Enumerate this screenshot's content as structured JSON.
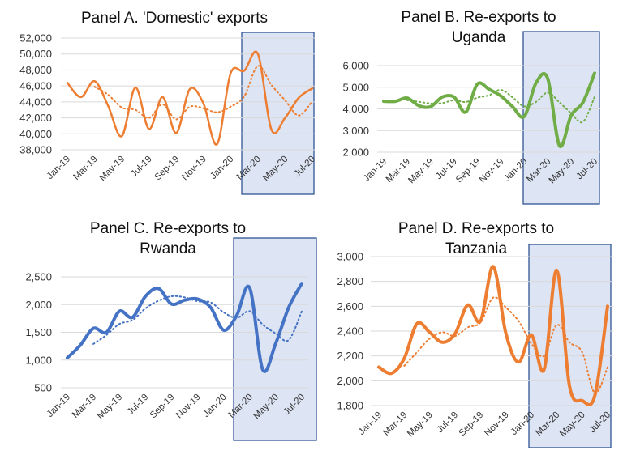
{
  "colors": {
    "orange": "#ED7D31",
    "green": "#70AD47",
    "blue": "#4472C4",
    "highlight_fill": "#DDE4F3",
    "highlight_border": "#2F5496",
    "grid": "#D9D9D9"
  },
  "chart_data": [
    {
      "type": "line",
      "title_lines": [
        "Panel A. 'Domestic' exports"
      ],
      "color": "#ED7D31",
      "categories": [
        "Jan-19",
        "Feb-19",
        "Mar-19",
        "Apr-19",
        "May-19",
        "Jun-19",
        "Jul-19",
        "Aug-19",
        "Sep-19",
        "Oct-19",
        "Nov-19",
        "Dec-19",
        "Jan-20",
        "Feb-20",
        "Mar-20",
        "Apr-20",
        "May-20",
        "Jun-20",
        "Jul-20"
      ],
      "x_tick_labels": [
        "Jan-19",
        "Mar-19",
        "May-19",
        "Jul-19",
        "Sep-19",
        "Nov-19",
        "Jan-20",
        "Mar-20",
        "May-20",
        "Jul-20"
      ],
      "ylim": [
        38000,
        52000
      ],
      "y_ticks": [
        38000,
        40000,
        42000,
        44000,
        46000,
        48000,
        50000,
        52000
      ],
      "y_tick_labels": [
        "38,000",
        "40,000",
        "42,000",
        "44,000",
        "46,000",
        "48,000",
        "50,000",
        "52,000"
      ],
      "grid": true,
      "series": [
        {
          "style": "solid",
          "values": [
            46400,
            44600,
            46600,
            43500,
            39700,
            45800,
            40600,
            44600,
            40100,
            45600,
            43800,
            38700,
            47600,
            47900,
            50000,
            40500,
            42000,
            44500,
            45700
          ]
        },
        {
          "style": "dotted",
          "values": [
            null,
            null,
            45900,
            44900,
            43300,
            43000,
            42000,
            43700,
            41800,
            43400,
            43200,
            42700,
            43400,
            44700,
            48500,
            46100,
            44200,
            42300,
            44100
          ]
        }
      ],
      "highlight_from": "Feb-20"
    },
    {
      "type": "line",
      "title_lines": [
        "Panel B. Re-exports to",
        "Uganda"
      ],
      "color": "#70AD47",
      "categories": [
        "Jan-19",
        "Feb-19",
        "Mar-19",
        "Apr-19",
        "May-19",
        "Jun-19",
        "Jul-19",
        "Aug-19",
        "Sep-19",
        "Oct-19",
        "Nov-19",
        "Dec-19",
        "Jan-20",
        "Feb-20",
        "Mar-20",
        "Apr-20",
        "May-20",
        "Jun-20",
        "Jul-20"
      ],
      "x_tick_labels": [
        "Jan-19",
        "Mar-19",
        "May-19",
        "Jul-19",
        "Sep-19",
        "Nov-19",
        "Jan-20",
        "Mar-20",
        "May-20",
        "Jul-20"
      ],
      "ylim": [
        2000,
        6000
      ],
      "y_ticks": [
        2000,
        3000,
        4000,
        5000,
        6000
      ],
      "y_tick_labels": [
        "2,000",
        "3,000",
        "4,000",
        "5,000",
        "6,000"
      ],
      "grid": true,
      "series": [
        {
          "style": "solid",
          "values": [
            4350,
            4350,
            4500,
            4150,
            4100,
            4550,
            4550,
            3850,
            5150,
            4900,
            4600,
            4100,
            3650,
            5200,
            5400,
            2300,
            3700,
            4300,
            5650
          ]
        },
        {
          "style": "dotted",
          "values": [
            null,
            null,
            4400,
            4330,
            4250,
            4270,
            4400,
            4320,
            4520,
            4630,
            4880,
            4530,
            4120,
            4320,
            4750,
            4300,
            3800,
            3400,
            4550
          ]
        }
      ],
      "highlight_from": "Feb-20"
    },
    {
      "type": "line",
      "title_lines": [
        "Panel C. Re-exports to",
        "Rwanda"
      ],
      "color": "#4472C4",
      "categories": [
        "Jan-19",
        "Feb-19",
        "Mar-19",
        "Apr-19",
        "May-19",
        "Jun-19",
        "Jul-19",
        "Aug-19",
        "Sep-19",
        "Oct-19",
        "Nov-19",
        "Dec-19",
        "Jan-20",
        "Feb-20",
        "Mar-20",
        "Apr-20",
        "May-20",
        "Jun-20",
        "Jul-20"
      ],
      "x_tick_labels": [
        "Jan-19",
        "Mar-19",
        "May-19",
        "Jul-19",
        "Sep-19",
        "Nov-19",
        "Jan-20",
        "Mar-20",
        "May-20",
        "Jul-20"
      ],
      "ylim": [
        500,
        2500
      ],
      "y_ticks": [
        500,
        1000,
        1500,
        2000,
        2500
      ],
      "y_tick_labels": [
        "500",
        "1,000",
        "1,500",
        "2,000",
        "2,500"
      ],
      "grid": true,
      "series": [
        {
          "style": "solid",
          "values": [
            1040,
            1270,
            1570,
            1500,
            1880,
            1770,
            2150,
            2290,
            2010,
            2080,
            2100,
            1950,
            1540,
            1800,
            2300,
            830,
            1300,
            1950,
            2380
          ]
        },
        {
          "style": "dotted",
          "values": [
            null,
            null,
            1290,
            1450,
            1650,
            1720,
            1930,
            2070,
            2150,
            2130,
            2060,
            2040,
            1860,
            1760,
            1880,
            1640,
            1480,
            1360,
            1880
          ]
        }
      ],
      "highlight_from": "Feb-20"
    },
    {
      "type": "line",
      "title_lines": [
        "Panel D. Re-exports to",
        "Tanzania"
      ],
      "color": "#ED7D31",
      "categories": [
        "Jan-19",
        "Feb-19",
        "Mar-19",
        "Apr-19",
        "May-19",
        "Jun-19",
        "Jul-19",
        "Aug-19",
        "Sep-19",
        "Oct-19",
        "Nov-19",
        "Dec-19",
        "Jan-20",
        "Feb-20",
        "Mar-20",
        "Apr-20",
        "May-20",
        "Jun-20",
        "Jul-20"
      ],
      "x_tick_labels": [
        "Jan-19",
        "Mar-19",
        "May-19",
        "Jul-19",
        "Sep-19",
        "Nov-19",
        "Jan-20",
        "Mar-20",
        "May-20",
        "Jul-20"
      ],
      "ylim": [
        1800,
        3000
      ],
      "y_ticks": [
        1800,
        2000,
        2200,
        2400,
        2600,
        2800,
        3000
      ],
      "y_tick_labels": [
        "1,800",
        "2,000",
        "2,200",
        "2,400",
        "2,600",
        "2,800",
        "3,000"
      ],
      "grid": true,
      "series": [
        {
          "style": "solid",
          "values": [
            2110,
            2060,
            2180,
            2460,
            2390,
            2310,
            2380,
            2610,
            2480,
            2920,
            2380,
            2150,
            2370,
            2090,
            2890,
            1960,
            1840,
            1880,
            2600
          ]
        },
        {
          "style": "dotted",
          "values": [
            null,
            null,
            2120,
            2230,
            2340,
            2390,
            2360,
            2430,
            2470,
            2670,
            2590,
            2480,
            2300,
            2200,
            2450,
            2310,
            2230,
            1900,
            2110
          ]
        }
      ],
      "highlight_from": "Jan-20"
    }
  ]
}
